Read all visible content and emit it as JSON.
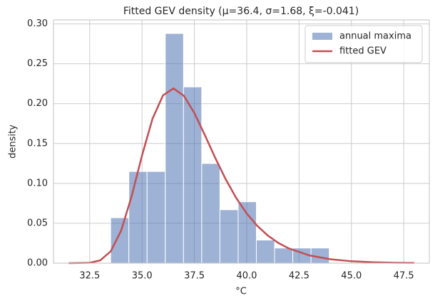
{
  "chart_data": {
    "type": "histogram",
    "title": "Fitted GEV density  (μ=36.4, σ=1.68, ξ=-0.041)",
    "xlabel": "°C",
    "ylabel": "density",
    "name": "annual maxima",
    "color": "#4c72b0",
    "bins": [
      33.5,
      34.37,
      35.24,
      36.11,
      36.98,
      37.85,
      38.72,
      39.59,
      40.46,
      41.33,
      42.2,
      43.07,
      43.94
    ],
    "values": [
      0.057,
      0.115,
      0.115,
      0.288,
      0.221,
      0.125,
      0.067,
      0.077,
      0.029,
      0.019,
      0.019,
      0.019
    ],
    "curve": {
      "type": "line",
      "name": "fitted GEV",
      "color": "#c44e52",
      "x": [
        31.5,
        32,
        32.5,
        33,
        33.5,
        34,
        34.5,
        35,
        35.5,
        36,
        36.5,
        37,
        37.5,
        38,
        38.5,
        39,
        39.5,
        40,
        40.5,
        41,
        41.5,
        42,
        43,
        44,
        45,
        46,
        47,
        48
      ],
      "values": [
        0,
        0.0002,
        0.0005,
        0.0035,
        0.0147,
        0.0407,
        0.0837,
        0.1351,
        0.1811,
        0.2104,
        0.2191,
        0.2098,
        0.1882,
        0.1606,
        0.1318,
        0.105,
        0.0816,
        0.0623,
        0.0469,
        0.0348,
        0.0255,
        0.0186,
        0.0097,
        0.0049,
        0.0024,
        0.0012,
        0.0006,
        0.0003
      ]
    },
    "xlim": [
      30.77,
      48.72
    ],
    "ylim": [
      0,
      0.305
    ],
    "xticks": [
      32.5,
      {
        "value": 35,
        "label": "35.0"
      },
      37.5,
      {
        "value": 40,
        "label": "40.0"
      },
      42.5,
      {
        "value": 45,
        "label": "45.0"
      },
      47.5
    ],
    "yticks": [
      {
        "value": 0,
        "label": "0.00"
      },
      {
        "value": 0.05,
        "label": "0.05"
      },
      {
        "value": 0.1,
        "label": "0.10"
      },
      {
        "value": 0.15,
        "label": "0.15"
      },
      {
        "value": 0.2,
        "label": "0.20"
      },
      {
        "value": 0.25,
        "label": "0.25"
      },
      {
        "value": 0.3,
        "label": "0.30"
      }
    ],
    "grid": true,
    "legend": "upper right"
  }
}
